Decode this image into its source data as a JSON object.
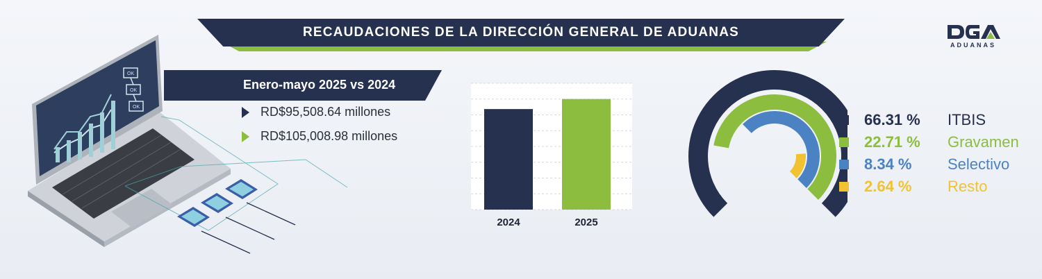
{
  "header": {
    "title": "RECAUDACIONES DE LA DIRECCIÓN GENERAL DE ADUANAS"
  },
  "logo": {
    "mark": "DGA",
    "sub": "ADUANAS"
  },
  "laptop": {
    "screen_labels": [
      "OK",
      "OK",
      "OK"
    ]
  },
  "summary": {
    "period": "Enero-mayo 2025 vs 2024",
    "items": [
      {
        "text": "RD$95,508.64 millones",
        "color": "#26304f"
      },
      {
        "text": "RD$105,008.98 millones",
        "color": "#8cbd3f"
      }
    ]
  },
  "chart_data": [
    {
      "type": "bar",
      "categories": [
        "2024",
        "2025"
      ],
      "values": [
        95508.64,
        105008.98
      ],
      "colors": [
        "#26304f",
        "#8cbd3f"
      ],
      "ylim": [
        0,
        120000
      ],
      "grid": true,
      "title": "",
      "xlabel": "",
      "ylabel": ""
    },
    {
      "type": "pie",
      "style": "concentric-rings",
      "labels": [
        "ITBIS",
        "Gravamen",
        "Selectivo",
        "Resto"
      ],
      "values": [
        66.31,
        22.71,
        8.34,
        2.64
      ],
      "display_values": [
        "66.31 %",
        "22.71 %",
        "8.34 %",
        "2.64 %"
      ],
      "colors": [
        "#26304f",
        "#8cbd3f",
        "#4b82c3",
        "#f1c232"
      ],
      "legend": "right"
    }
  ]
}
